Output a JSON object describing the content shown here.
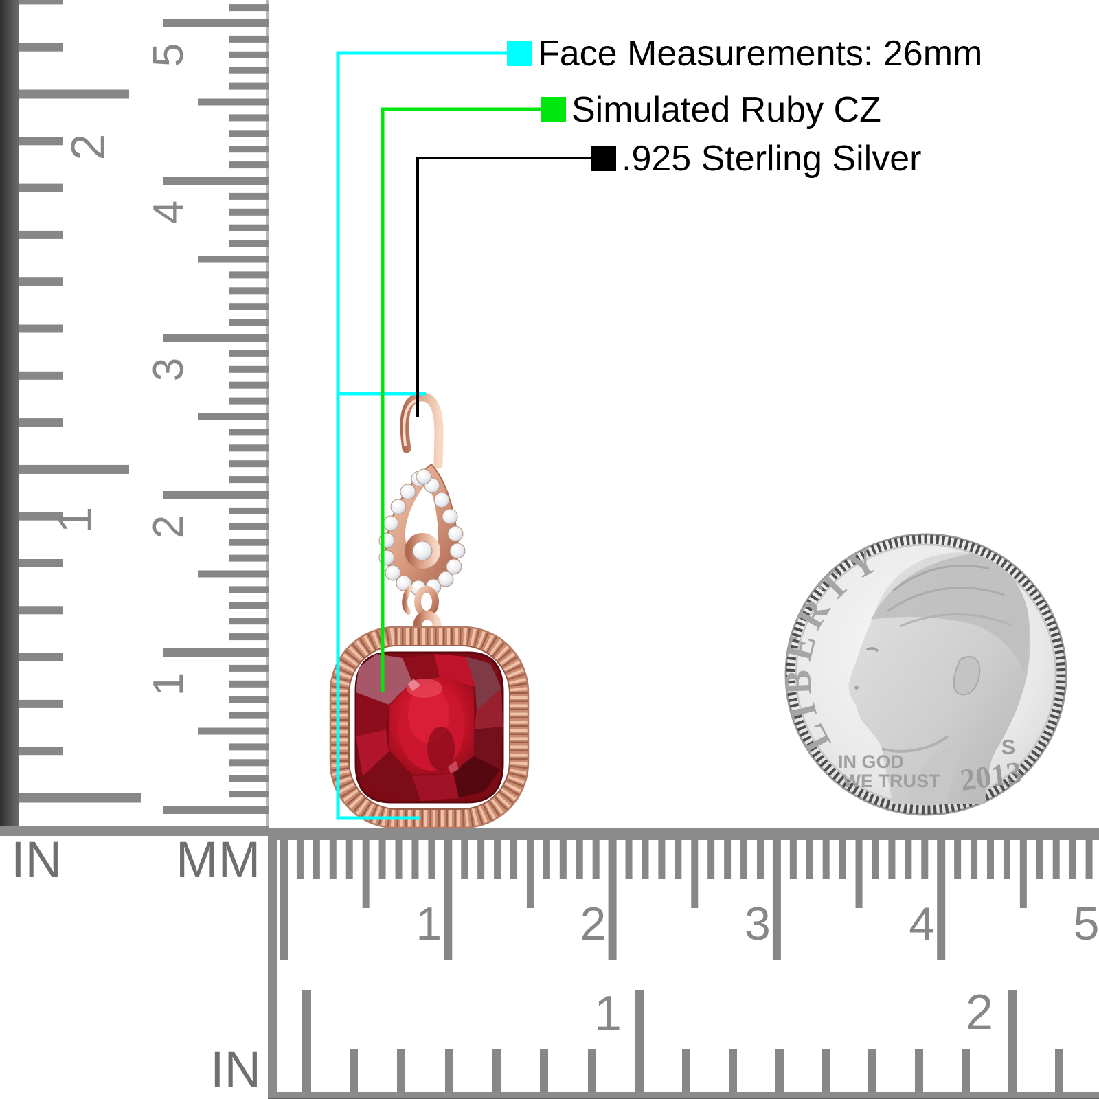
{
  "annotations": {
    "items": [
      {
        "label": "Face Measurements: 26mm",
        "marker_color": "#00FFFF"
      },
      {
        "label": "Simulated Ruby CZ",
        "marker_color": "#00E70E"
      },
      {
        "label": ".925 Sterling Silver",
        "marker_color": "#000000"
      }
    ]
  },
  "rulers": {
    "vertical": {
      "inch_label": "IN",
      "mm_label": "MM",
      "inch_digits": [
        "2",
        "1"
      ],
      "mm_digits": [
        "5",
        "4",
        "3",
        "2",
        "1"
      ]
    },
    "horizontal": {
      "mm_digits": [
        "1",
        "2",
        "3",
        "4",
        "5"
      ],
      "inch_digits": [
        "1",
        "2"
      ],
      "inch_label": "IN"
    }
  },
  "coin": {
    "legend": "LIBERTY",
    "motto_line1": "IN GOD",
    "motto_line2": "WE TRUST",
    "mint_mark": "S",
    "year": "2013"
  },
  "colors": {
    "accent_cyan": "#00FFFF",
    "accent_green": "#00E70E",
    "accent_black": "#000000",
    "ruler_gray": "#878787",
    "label_gray": "#6F6F6F",
    "rose_gold": "#DCA287",
    "ruby_red": "#B01226",
    "cz_white": "#F2F3F6"
  }
}
